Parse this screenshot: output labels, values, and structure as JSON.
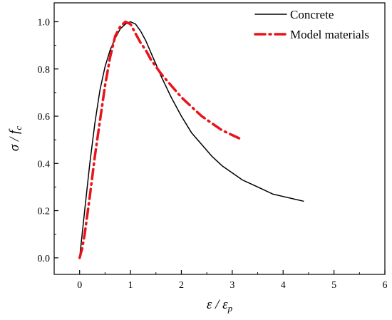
{
  "chart_data": {
    "type": "line",
    "xlabel": {
      "main": "ε",
      "sep": " / ",
      "base": "ε",
      "sub": "p"
    },
    "ylabel": {
      "main": "σ",
      "sep": " / ",
      "base": "f",
      "sub": "c"
    },
    "xlim": [
      -0.5,
      6
    ],
    "ylim": [
      -0.07,
      1.08
    ],
    "xticks": [
      0,
      1,
      2,
      3,
      4,
      5,
      6
    ],
    "xtick_labels": [
      "0",
      "1",
      "2",
      "3",
      "4",
      "5",
      "6"
    ],
    "yticks": [
      0.0,
      0.2,
      0.4,
      0.6,
      0.8,
      1.0
    ],
    "ytick_labels": [
      "0.0",
      "0.2",
      "0.4",
      "0.6",
      "0.8",
      "1.0"
    ],
    "grid": false,
    "legend_position": "top-right",
    "series": [
      {
        "name": "Concrete",
        "color": "#000000",
        "style": "solid",
        "x": [
          0,
          0.1,
          0.2,
          0.3,
          0.4,
          0.5,
          0.6,
          0.7,
          0.8,
          0.9,
          1.0,
          1.1,
          1.2,
          1.3,
          1.4,
          1.5,
          1.6,
          1.8,
          2.0,
          2.2,
          2.4,
          2.6,
          2.8,
          3.0,
          3.2,
          3.4,
          3.6,
          3.8,
          4.0,
          4.2,
          4.4
        ],
        "y": [
          0.0,
          0.2,
          0.4,
          0.57,
          0.71,
          0.81,
          0.88,
          0.93,
          0.97,
          0.99,
          1.0,
          0.99,
          0.96,
          0.92,
          0.87,
          0.82,
          0.77,
          0.68,
          0.6,
          0.53,
          0.48,
          0.43,
          0.39,
          0.36,
          0.33,
          0.31,
          0.29,
          0.27,
          0.26,
          0.25,
          0.24
        ]
      },
      {
        "name": "Model materials",
        "color": "#e8141c",
        "style": "dashdot",
        "x": [
          0,
          0.05,
          0.1,
          0.2,
          0.3,
          0.4,
          0.5,
          0.6,
          0.7,
          0.8,
          0.9,
          1.0,
          1.1,
          1.2,
          1.3,
          1.4,
          1.5,
          1.6,
          1.8,
          2.0,
          2.2,
          2.4,
          2.6,
          2.8,
          3.0,
          3.2
        ],
        "y": [
          0.0,
          0.04,
          0.1,
          0.26,
          0.43,
          0.58,
          0.73,
          0.85,
          0.94,
          0.98,
          1.0,
          0.99,
          0.95,
          0.91,
          0.88,
          0.84,
          0.81,
          0.78,
          0.73,
          0.68,
          0.64,
          0.6,
          0.57,
          0.54,
          0.52,
          0.5
        ]
      }
    ]
  }
}
